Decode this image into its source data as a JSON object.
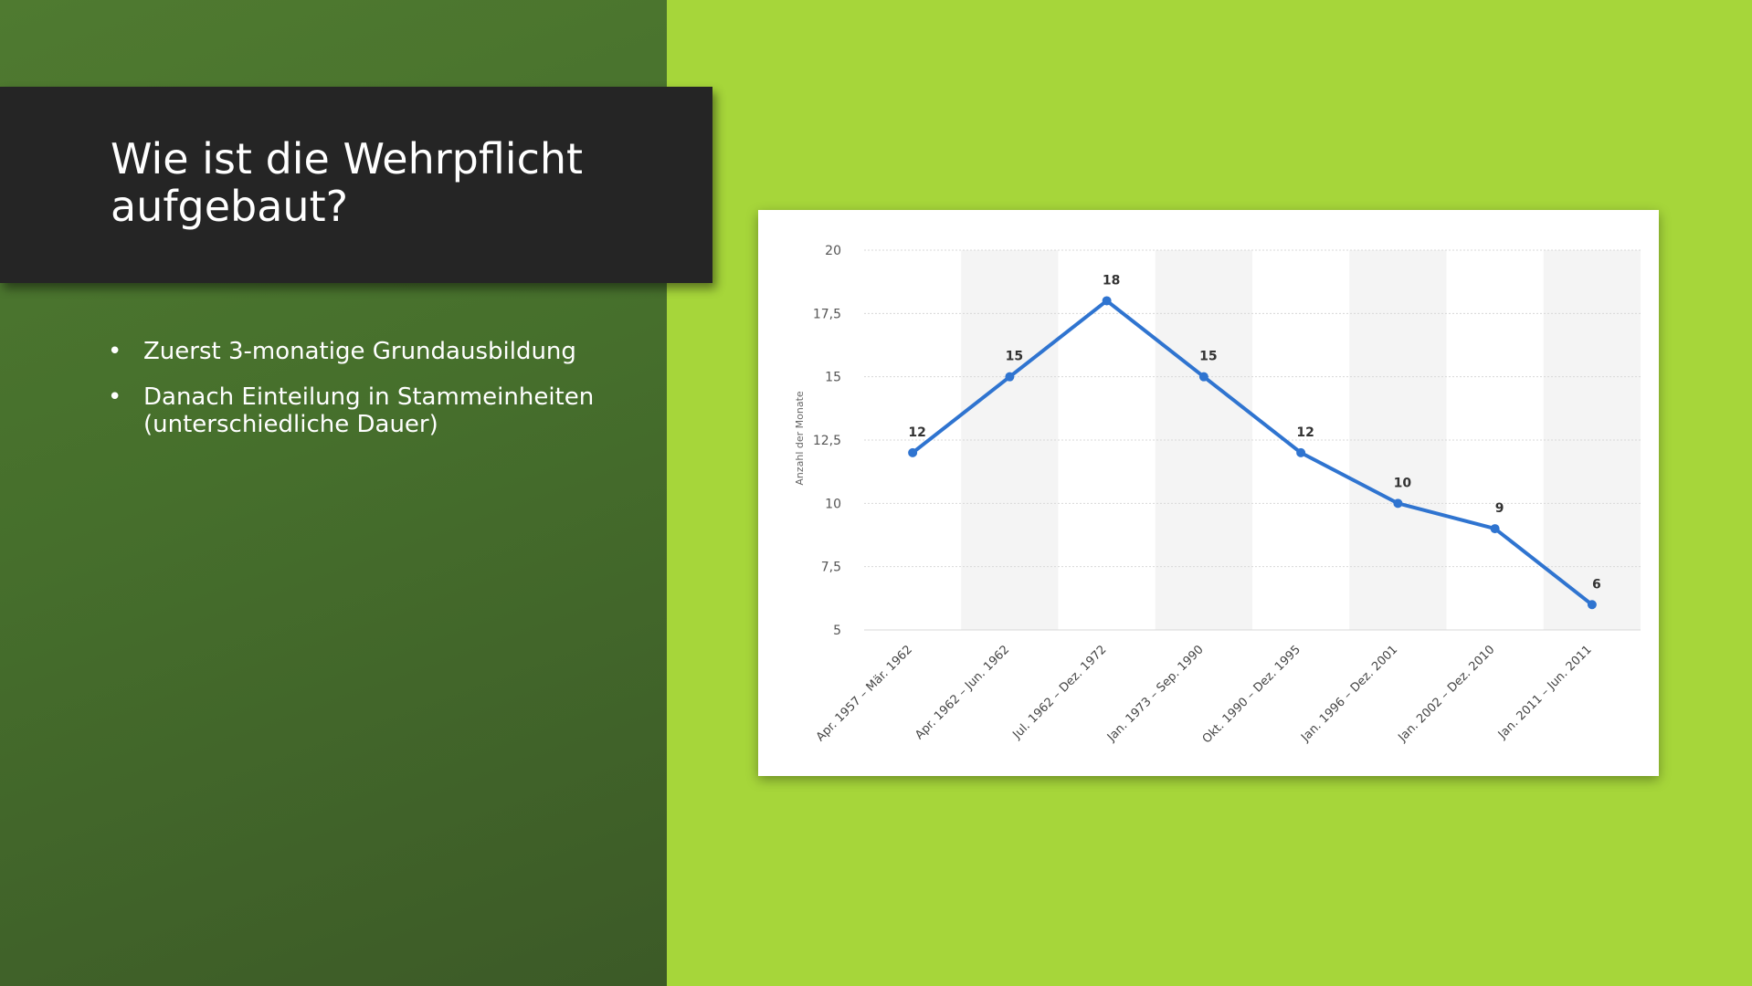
{
  "slide": {
    "title": "Wie ist die Wehrpflicht aufgebaut?",
    "bullets": [
      "Zuerst 3-monatige Grundausbildung",
      "Danach Einteilung in Stammeinheiten (unterschiedliche Dauer)"
    ],
    "bullet_symbol": "•"
  },
  "colors": {
    "slide_background": "#a6d63a",
    "panel_background": "#466f2c",
    "title_box": "#252525",
    "series_line": "#2f74d0"
  },
  "chart_data": {
    "type": "line",
    "title": "",
    "xlabel": "",
    "ylabel": "Anzahl der Monate",
    "categories": [
      "Apr. 1957 – Mär. 1962",
      "Apr. 1962 – Jun. 1962",
      "Jul. 1962 – Dez. 1972",
      "Jan. 1973 – Sep. 1990",
      "Okt. 1990 – Dez. 1995",
      "Jan. 1996 – Dez. 2001",
      "Jan. 2002 – Dez. 2010",
      "Jan. 2011 – Jun. 2011"
    ],
    "values": [
      12,
      15,
      18,
      15,
      12,
      10,
      9,
      6
    ],
    "value_labels": [
      "12",
      "15",
      "18",
      "15",
      "12",
      "10",
      "9",
      "6"
    ],
    "ylim": [
      5,
      20
    ],
    "yticks": [
      5,
      7.5,
      10,
      12.5,
      15,
      17.5,
      20
    ],
    "ytick_labels": [
      "5",
      "7,5",
      "10",
      "12,5",
      "15",
      "17,5",
      "20"
    ],
    "grid": true,
    "legend": "none"
  }
}
